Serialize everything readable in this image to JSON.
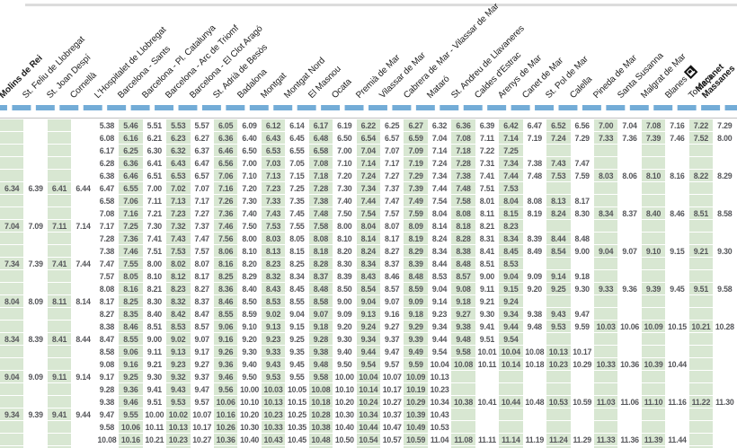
{
  "timetable": {
    "colors": {
      "green_band": "#d8e7d2",
      "line_blue": "#73acd7",
      "time_text": "#55565a",
      "station_text": "#1b1b1b"
    },
    "stations": [
      {
        "name": "Molins de Rei",
        "bold": true,
        "green": true
      },
      {
        "name": "St. Feliu de Llobregat",
        "green": false
      },
      {
        "name": "St. Joan Despí",
        "green": true
      },
      {
        "name": "Cornellà",
        "green": false
      },
      {
        "name": "L'Hospitalet de Llobregat",
        "green": false
      },
      {
        "name": "Barcelona - Sants",
        "green": true
      },
      {
        "name": "Barcelona - Pl. Catalunya",
        "green": false
      },
      {
        "name": "Barcelona - Arc de Triomf",
        "green": true
      },
      {
        "name": "Barcelona - El Clot Aragó",
        "green": false
      },
      {
        "name": "St. Adrià de Besòs",
        "green": true
      },
      {
        "name": "Badalona",
        "green": false
      },
      {
        "name": "Montgat",
        "green": true
      },
      {
        "name": "Montgat Nord",
        "green": false
      },
      {
        "name": "El Masnou",
        "green": true
      },
      {
        "name": "Ocata",
        "green": false
      },
      {
        "name": "Premià de Mar",
        "green": true
      },
      {
        "name": "Vilassar de Mar",
        "green": false
      },
      {
        "name": "Cabrera de Mar - Vilassar de Mar",
        "green": true
      },
      {
        "name": "Mataró",
        "green": false
      },
      {
        "name": "St. Andreu de Llavaneres",
        "green": true
      },
      {
        "name": "Caldes d'Estrac",
        "green": false
      },
      {
        "name": "Arenys de Mar",
        "green": true
      },
      {
        "name": "Canet de Mar",
        "green": false
      },
      {
        "name": "St. Pol de Mar",
        "green": true
      },
      {
        "name": "Calella",
        "green": false
      },
      {
        "name": "Pineda de Mar",
        "green": true
      },
      {
        "name": "Santa Susanna",
        "green": false
      },
      {
        "name": "Malgrat de Mar",
        "green": true
      },
      {
        "name": "Blanes",
        "green": false,
        "icon": "renfe-interchange"
      },
      {
        "name": "Tordera",
        "green": true
      },
      {
        "name": "Maçanet\nMassanes",
        "bold": true,
        "green": false
      }
    ],
    "rows": [
      [
        "",
        "",
        "",
        "",
        "5.38",
        "5.46",
        "5.51",
        "5.53",
        "5.57",
        "6.05",
        "6.09",
        "6.12",
        "6.14",
        "6.17",
        "6.19",
        "6.22",
        "6.25",
        "6.27",
        "6.32",
        "6.36",
        "6.39",
        "6.42",
        "6.47",
        "6.52",
        "6.56",
        "7.00",
        "7.04",
        "7.08",
        "7.16",
        "7.22",
        "7.29"
      ],
      [
        "",
        "",
        "",
        "",
        "6.08",
        "6.16",
        "6.21",
        "6.23",
        "6.27",
        "6.36",
        "6.40",
        "6.43",
        "6.45",
        "6.48",
        "6.50",
        "6.54",
        "6.57",
        "6.59",
        "7.04",
        "7.08",
        "7.11",
        "7.14",
        "7.19",
        "7.24",
        "7.29",
        "7.33",
        "7.36",
        "7.39",
        "7.46",
        "7.52",
        "8.00"
      ],
      [
        "",
        "",
        "",
        "",
        "6.17",
        "6.25",
        "6.30",
        "6.32",
        "6.37",
        "6.46",
        "6.50",
        "6.53",
        "6.55",
        "6.58",
        "7.00",
        "7.04",
        "7.07",
        "7.09",
        "7.14",
        "7.18",
        "7.22",
        "7.25",
        "",
        "",
        "",
        "",
        "",
        "",
        "",
        "",
        ""
      ],
      [
        "",
        "",
        "",
        "",
        "6.28",
        "6.36",
        "6.41",
        "6.43",
        "6.47",
        "6.56",
        "7.00",
        "7.03",
        "7.05",
        "7.08",
        "7.10",
        "7.14",
        "7.17",
        "7.19",
        "7.24",
        "7.28",
        "7.31",
        "7.34",
        "7.38",
        "7.43",
        "7.47",
        "",
        "",
        "",
        "",
        "",
        ""
      ],
      [
        "",
        "",
        "",
        "",
        "6.38",
        "6.46",
        "6.51",
        "6.53",
        "6.57",
        "7.06",
        "7.10",
        "7.13",
        "7.15",
        "7.18",
        "7.20",
        "7.24",
        "7.27",
        "7.29",
        "7.34",
        "7.38",
        "7.41",
        "7.44",
        "7.48",
        "7.53",
        "7.59",
        "8.03",
        "8.06",
        "8.10",
        "8.16",
        "8.22",
        "8.29"
      ],
      [
        "6.34",
        "6.39",
        "6.41",
        "6.44",
        "6.47",
        "6.55",
        "7.00",
        "7.02",
        "7.07",
        "7.16",
        "7.20",
        "7.23",
        "7.25",
        "7.28",
        "7.30",
        "7.34",
        "7.37",
        "7.39",
        "7.44",
        "7.48",
        "7.51",
        "7.53",
        "",
        "",
        "",
        "",
        "",
        "",
        "",
        "",
        ""
      ],
      [
        "",
        "",
        "",
        "",
        "6.58",
        "7.06",
        "7.11",
        "7.13",
        "7.17",
        "7.26",
        "7.30",
        "7.33",
        "7.35",
        "7.38",
        "7.40",
        "7.44",
        "7.47",
        "7.49",
        "7.54",
        "7.58",
        "8.01",
        "8.04",
        "8.08",
        "8.13",
        "8.17",
        "",
        "",
        "",
        "",
        "",
        ""
      ],
      [
        "",
        "",
        "",
        "",
        "7.08",
        "7.16",
        "7.21",
        "7.23",
        "7.27",
        "7.36",
        "7.40",
        "7.43",
        "7.45",
        "7.48",
        "7.50",
        "7.54",
        "7.57",
        "7.59",
        "8.04",
        "8.08",
        "8.11",
        "8.15",
        "8.19",
        "8.24",
        "8.30",
        "8.34",
        "8.37",
        "8.40",
        "8.46",
        "8.51",
        "8.58"
      ],
      [
        "7.04",
        "7.09",
        "7.11",
        "7.14",
        "7.17",
        "7.25",
        "7.30",
        "7.32",
        "7.37",
        "7.46",
        "7.50",
        "7.53",
        "7.55",
        "7.58",
        "8.00",
        "8.04",
        "8.07",
        "8.09",
        "8.14",
        "8.18",
        "8.21",
        "8.23",
        "",
        "",
        "",
        "",
        "",
        "",
        "",
        "",
        ""
      ],
      [
        "",
        "",
        "",
        "",
        "7.28",
        "7.36",
        "7.41",
        "7.43",
        "7.47",
        "7.56",
        "8.00",
        "8.03",
        "8.05",
        "8.08",
        "8.10",
        "8.14",
        "8.17",
        "8.19",
        "8.24",
        "8.28",
        "8.31",
        "8.34",
        "8.39",
        "8.44",
        "8.48",
        "",
        "",
        "",
        "",
        "",
        ""
      ],
      [
        "",
        "",
        "",
        "",
        "7.38",
        "7.46",
        "7.51",
        "7.53",
        "7.57",
        "8.06",
        "8.10",
        "8.13",
        "8.15",
        "8.18",
        "8.20",
        "8.24",
        "8.27",
        "8.29",
        "8.34",
        "8.38",
        "8.41",
        "8.45",
        "8.49",
        "8.54",
        "9.00",
        "9.04",
        "9.07",
        "9.10",
        "9.15",
        "9.21",
        "9.30"
      ],
      [
        "7.34",
        "7.39",
        "7.41",
        "7.44",
        "7.47",
        "7.55",
        "8.00",
        "8.02",
        "8.07",
        "8.16",
        "8.20",
        "8.23",
        "8.25",
        "8.28",
        "8.30",
        "8.34",
        "8.37",
        "8.39",
        "8.44",
        "8.48",
        "8.51",
        "8.53",
        "",
        "",
        "",
        "",
        "",
        "",
        "",
        "",
        ""
      ],
      [
        "",
        "",
        "",
        "",
        "7.57",
        "8.05",
        "8.10",
        "8.12",
        "8.17",
        "8.25",
        "8.29",
        "8.32",
        "8.34",
        "8.37",
        "8.39",
        "8.43",
        "8.46",
        "8.48",
        "8.53",
        "8.57",
        "9.00",
        "9.04",
        "9.09",
        "9.14",
        "9.18",
        "",
        "",
        "",
        "",
        "",
        ""
      ],
      [
        "",
        "",
        "",
        "",
        "8.08",
        "8.16",
        "8.21",
        "8.23",
        "8.27",
        "8.36",
        "8.40",
        "8.43",
        "8.45",
        "8.48",
        "8.50",
        "8.54",
        "8.57",
        "8.59",
        "9.04",
        "9.08",
        "9.11",
        "9.15",
        "9.20",
        "9.25",
        "9.30",
        "9.33",
        "9.36",
        "9.39",
        "9.45",
        "9.51",
        "9.58"
      ],
      [
        "8.04",
        "8.09",
        "8.11",
        "8.14",
        "8.17",
        "8.25",
        "8.30",
        "8.32",
        "8.37",
        "8.46",
        "8.50",
        "8.53",
        "8.55",
        "8.58",
        "9.00",
        "9.04",
        "9.07",
        "9.09",
        "9.14",
        "9.18",
        "9.21",
        "9.24",
        "",
        "",
        "",
        "",
        "",
        "",
        "",
        "",
        ""
      ],
      [
        "",
        "",
        "",
        "",
        "8.27",
        "8.35",
        "8.40",
        "8.42",
        "8.47",
        "8.55",
        "8.59",
        "9.02",
        "9.04",
        "9.07",
        "9.09",
        "9.13",
        "9.16",
        "9.18",
        "9.23",
        "9.27",
        "9.30",
        "9.34",
        "9.38",
        "9.43",
        "9.47",
        "",
        "",
        "",
        "",
        "",
        ""
      ],
      [
        "",
        "",
        "",
        "",
        "8.38",
        "8.46",
        "8.51",
        "8.53",
        "8.57",
        "9.06",
        "9.10",
        "9.13",
        "9.15",
        "9.18",
        "9.20",
        "9.24",
        "9.27",
        "9.29",
        "9.34",
        "9.38",
        "9.41",
        "9.44",
        "9.48",
        "9.53",
        "9.59",
        "10.03",
        "10.06",
        "10.09",
        "10.15",
        "10.21",
        "10.28"
      ],
      [
        "8.34",
        "8.39",
        "8.41",
        "8.44",
        "8.47",
        "8.55",
        "9.00",
        "9.02",
        "9.07",
        "9.16",
        "9.20",
        "9.23",
        "9.25",
        "9.28",
        "9.30",
        "9.34",
        "9.37",
        "9.39",
        "9.44",
        "9.48",
        "9.51",
        "9.54",
        "",
        "",
        "",
        "",
        "",
        "",
        "",
        "",
        ""
      ],
      [
        "",
        "",
        "",
        "",
        "8.58",
        "9.06",
        "9.11",
        "9.13",
        "9.17",
        "9.26",
        "9.30",
        "9.33",
        "9.35",
        "9.38",
        "9.40",
        "9.44",
        "9.47",
        "9.49",
        "9.54",
        "9.58",
        "10.01",
        "10.04",
        "10.08",
        "10.13",
        "10.17",
        "",
        "",
        "",
        "",
        "",
        ""
      ],
      [
        "",
        "",
        "",
        "",
        "9.08",
        "9.16",
        "9.21",
        "9.23",
        "9.27",
        "9.36",
        "9.40",
        "9.43",
        "9.45",
        "9.48",
        "9.50",
        "9.54",
        "9.57",
        "9.59",
        "10.04",
        "10.08",
        "10.11",
        "10.14",
        "10.18",
        "10.23",
        "10.29",
        "10.33",
        "10.36",
        "10.39",
        "10.44",
        "",
        ""
      ],
      [
        "9.04",
        "9.09",
        "9.11",
        "9.14",
        "9.17",
        "9.25",
        "9.30",
        "9.32",
        "9.37",
        "9.46",
        "9.50",
        "9.53",
        "9.55",
        "9.58",
        "10.00",
        "10.04",
        "10.07",
        "10.09",
        "10.13",
        "",
        "",
        "",
        "",
        "",
        "",
        "",
        "",
        "",
        "",
        "",
        ""
      ],
      [
        "",
        "",
        "",
        "",
        "9.28",
        "9.36",
        "9.41",
        "9.43",
        "9.47",
        "9.56",
        "10.00",
        "10.03",
        "10.05",
        "10.08",
        "10.10",
        "10.14",
        "10.17",
        "10.19",
        "10.23",
        "",
        "",
        "",
        "",
        "",
        "",
        "",
        "",
        "",
        "",
        "",
        ""
      ],
      [
        "",
        "",
        "",
        "",
        "9.38",
        "9.46",
        "9.51",
        "9.53",
        "9.57",
        "10.06",
        "10.10",
        "10.13",
        "10.15",
        "10.18",
        "10.20",
        "10.24",
        "10.27",
        "10.29",
        "10.34",
        "10.38",
        "10.41",
        "10.44",
        "10.48",
        "10.53",
        "10.59",
        "11.03",
        "11.06",
        "11.10",
        "11.16",
        "11.22",
        "11.30"
      ],
      [
        "9.34",
        "9.39",
        "9.41",
        "9.44",
        "9.47",
        "9.55",
        "10.00",
        "10.02",
        "10.07",
        "10.16",
        "10.20",
        "10.23",
        "10.25",
        "10.28",
        "10.30",
        "10.34",
        "10.37",
        "10.39",
        "10.43",
        "",
        "",
        "",
        "",
        "",
        "",
        "",
        "",
        "",
        "",
        "",
        ""
      ],
      [
        "",
        "",
        "",
        "",
        "9.58",
        "10.06",
        "10.11",
        "10.13",
        "10.17",
        "10.26",
        "10.30",
        "10.33",
        "10.35",
        "10.38",
        "10.40",
        "10.44",
        "10.47",
        "10.49",
        "10.53",
        "",
        "",
        "",
        "",
        "",
        "",
        "",
        "",
        "",
        "",
        "",
        ""
      ],
      [
        "",
        "",
        "",
        "",
        "10.08",
        "10.16",
        "10.21",
        "10.23",
        "10.27",
        "10.36",
        "10.40",
        "10.43",
        "10.45",
        "10.48",
        "10.50",
        "10.54",
        "10.57",
        "10.59",
        "11.04",
        "11.08",
        "11.11",
        "11.14",
        "11.19",
        "11.24",
        "11.29",
        "11.33",
        "11.36",
        "11.39",
        "11.44",
        "",
        ""
      ]
    ]
  }
}
